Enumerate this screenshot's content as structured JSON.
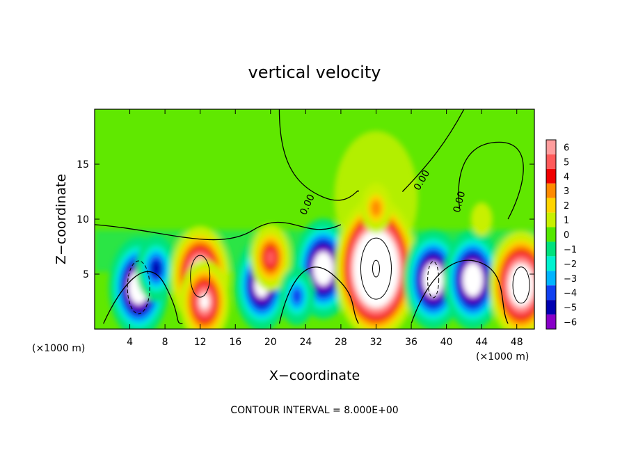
{
  "chart_data": {
    "type": "heatmap",
    "title": "vertical velocity",
    "xlabel": "X−coordinate",
    "ylabel": "Z−coordinate",
    "x_scale_label_left": "(×1000 m)",
    "x_scale_label_right": "(×1000 m)",
    "xlim": [
      0,
      50
    ],
    "ylim": [
      0,
      20
    ],
    "xticks": [
      4,
      8,
      12,
      16,
      20,
      24,
      28,
      32,
      36,
      40,
      44,
      48
    ],
    "xtick_labels": [
      "4",
      "8",
      "12",
      "16",
      "20",
      "24",
      "28",
      "32",
      "36",
      "40",
      "44",
      "48"
    ],
    "yticks": [
      5,
      10,
      15
    ],
    "ytick_labels": [
      "5",
      "10",
      "15"
    ],
    "colorbar": {
      "levels": [
        6,
        5,
        4,
        3,
        2,
        1,
        0,
        -1,
        -2,
        -3,
        -4,
        -5,
        -6
      ],
      "labels": [
        "6",
        "5",
        "4",
        "3",
        "2",
        "1",
        "0",
        "−1",
        "−2",
        "−3",
        "−4",
        "−5",
        "−6"
      ],
      "colors": [
        "#ff9d9d",
        "#ff5a5a",
        "#f00000",
        "#ff8a00",
        "#ffd400",
        "#c8f000",
        "#54e800",
        "#00e27d",
        "#00f2d0",
        "#00b4ff",
        "#1040f0",
        "#0000b0",
        "#8800c8"
      ]
    },
    "cells": [
      {
        "x": 5,
        "z": 3.8,
        "w": -9
      },
      {
        "x": 7,
        "z": 5.5,
        "w": -5
      },
      {
        "x": 12,
        "z": 4.8,
        "w": 9
      },
      {
        "x": 12.5,
        "z": 2.5,
        "w": 7
      },
      {
        "x": 19,
        "z": 4,
        "w": -8
      },
      {
        "x": 20,
        "z": 6.5,
        "w": 5
      },
      {
        "x": 26,
        "z": 5.5,
        "w": -9
      },
      {
        "x": 23,
        "z": 3,
        "w": -4
      },
      {
        "x": 32,
        "z": 5.5,
        "w": 14
      },
      {
        "x": 32,
        "z": 11,
        "w": 3
      },
      {
        "x": 38.5,
        "z": 4.5,
        "w": -9
      },
      {
        "x": 43,
        "z": 4.5,
        "w": -9
      },
      {
        "x": 48.5,
        "z": 4,
        "w": 10
      },
      {
        "x": 44,
        "z": 10,
        "w": 1
      }
    ],
    "contour_labels": [
      "0.00",
      "0.00",
      "0.00"
    ],
    "contour_interval_text": "CONTOUR INTERVAL = 8.000E+00"
  }
}
